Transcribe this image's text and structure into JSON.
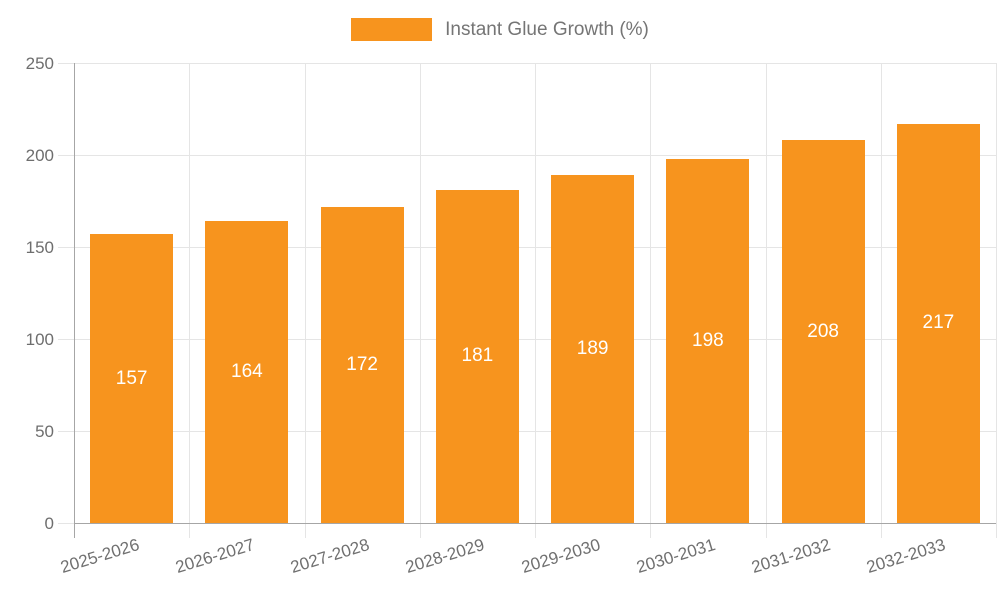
{
  "chart_data": {
    "type": "bar",
    "title": "",
    "categories": [
      "2025-2026",
      "2026-2027",
      "2027-2028",
      "2028-2029",
      "2029-2030",
      "2030-2031",
      "2031-2032",
      "2032-2033"
    ],
    "series": [
      {
        "name": "Instant Glue Growth (%)",
        "values": [
          157,
          164,
          172,
          181,
          189,
          198,
          208,
          217
        ],
        "color": "#F7941E"
      }
    ],
    "xlabel": "",
    "ylabel": "",
    "ylim": [
      0,
      250
    ],
    "yticks": [
      0,
      50,
      100,
      150,
      200,
      250
    ],
    "grid": true,
    "legend_position": "top",
    "value_labels": "inside-center",
    "value_label_color": "#FFFFFF"
  },
  "legend": {
    "items": [
      {
        "label": "Instant Glue Growth (%)",
        "swatch_color": "#F7941E"
      }
    ]
  },
  "colors": {
    "background": "#FFFFFF",
    "bar": "#F7941E",
    "axis_line": "#A6A6A6",
    "grid_line": "#E5E5E5",
    "tick_label": "#6E6E6E",
    "legend_label": "#757575",
    "value_label": "#FFFFFF"
  }
}
